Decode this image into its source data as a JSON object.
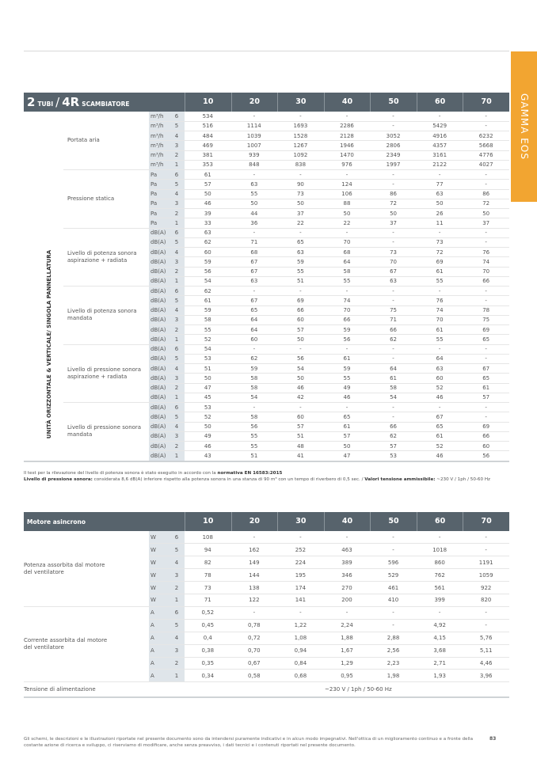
{
  "brand_tab": "GAMMA EOS",
  "columns": [
    "10",
    "20",
    "30",
    "40",
    "50",
    "60",
    "70"
  ],
  "table1": {
    "title": {
      "a": "2",
      "b": "TUBI",
      "sep": "/",
      "c": "4R",
      "d": "SCAMBIATORE"
    },
    "side_label": "UNITÀ ORIZZONTALE & VERTICALE/ SINGOLA PANNELLATURA",
    "groups": [
      {
        "label": "Portata aria",
        "unit": "m³/h",
        "rows": [
          [
            "6",
            "534",
            "-",
            "-",
            "-",
            "-",
            "-",
            "-"
          ],
          [
            "5",
            "516",
            "1114",
            "1693",
            "2286",
            "-",
            "5429",
            "-"
          ],
          [
            "4",
            "484",
            "1039",
            "1528",
            "2128",
            "3052",
            "4916",
            "6232"
          ],
          [
            "3",
            "469",
            "1007",
            "1267",
            "1946",
            "2806",
            "4357",
            "5668"
          ],
          [
            "2",
            "381",
            "939",
            "1092",
            "1470",
            "2349",
            "3161",
            "4776"
          ],
          [
            "1",
            "353",
            "848",
            "838",
            "976",
            "1997",
            "2122",
            "4027"
          ]
        ]
      },
      {
        "label": "Pressione statica",
        "unit": "Pa",
        "rows": [
          [
            "6",
            "61",
            "-",
            "-",
            "-",
            "-",
            "-",
            "-"
          ],
          [
            "5",
            "57",
            "63",
            "90",
            "124",
            "-",
            "77",
            "-"
          ],
          [
            "4",
            "50",
            "55",
            "73",
            "106",
            "86",
            "63",
            "86"
          ],
          [
            "3",
            "46",
            "50",
            "50",
            "88",
            "72",
            "50",
            "72"
          ],
          [
            "2",
            "39",
            "44",
            "37",
            "50",
            "50",
            "26",
            "50"
          ],
          [
            "1",
            "33",
            "36",
            "22",
            "22",
            "37",
            "11",
            "37"
          ]
        ]
      },
      {
        "label": "Livello di potenza sonora\naspirazione + radiata",
        "unit": "dB(A)",
        "rows": [
          [
            "6",
            "63",
            "-",
            "-",
            "-",
            "-",
            "-",
            "-"
          ],
          [
            "5",
            "62",
            "71",
            "65",
            "70",
            "-",
            "73",
            "-"
          ],
          [
            "4",
            "60",
            "68",
            "63",
            "68",
            "73",
            "72",
            "76"
          ],
          [
            "3",
            "59",
            "67",
            "59",
            "64",
            "70",
            "69",
            "74"
          ],
          [
            "2",
            "56",
            "67",
            "55",
            "58",
            "67",
            "61",
            "70"
          ],
          [
            "1",
            "54",
            "63",
            "51",
            "55",
            "63",
            "55",
            "66"
          ]
        ]
      },
      {
        "label": "Livello di potenza sonora\nmandata",
        "unit": "dB(A)",
        "rows": [
          [
            "6",
            "62",
            "-",
            "-",
            "-",
            "-",
            "-",
            "-"
          ],
          [
            "5",
            "61",
            "67",
            "69",
            "74",
            "-",
            "76",
            "-"
          ],
          [
            "4",
            "59",
            "65",
            "66",
            "70",
            "75",
            "74",
            "78"
          ],
          [
            "3",
            "58",
            "64",
            "60",
            "66",
            "71",
            "70",
            "75"
          ],
          [
            "2",
            "55",
            "64",
            "57",
            "59",
            "66",
            "61",
            "69"
          ],
          [
            "1",
            "52",
            "60",
            "50",
            "56",
            "62",
            "55",
            "65"
          ]
        ]
      },
      {
        "label": "Livello di pressione sonora\naspirazione + radiata",
        "unit": "dB(A)",
        "rows": [
          [
            "6",
            "54",
            "-",
            "-",
            "-",
            "-",
            "-",
            "-"
          ],
          [
            "5",
            "53",
            "62",
            "56",
            "61",
            "-",
            "64",
            "-"
          ],
          [
            "4",
            "51",
            "59",
            "54",
            "59",
            "64",
            "63",
            "67"
          ],
          [
            "3",
            "50",
            "58",
            "50",
            "55",
            "61",
            "60",
            "65"
          ],
          [
            "2",
            "47",
            "58",
            "46",
            "49",
            "58",
            "52",
            "61"
          ],
          [
            "1",
            "45",
            "54",
            "42",
            "46",
            "54",
            "46",
            "57"
          ]
        ]
      },
      {
        "label": "Livello di pressione sonora\nmandata",
        "unit": "dB(A)",
        "rows": [
          [
            "6",
            "53",
            "-",
            "-",
            "-",
            "-",
            "-",
            "-"
          ],
          [
            "5",
            "52",
            "58",
            "60",
            "65",
            "-",
            "67",
            "-"
          ],
          [
            "4",
            "50",
            "56",
            "57",
            "61",
            "66",
            "65",
            "69"
          ],
          [
            "3",
            "49",
            "55",
            "51",
            "57",
            "62",
            "61",
            "66"
          ],
          [
            "2",
            "46",
            "55",
            "48",
            "50",
            "57",
            "52",
            "60"
          ],
          [
            "1",
            "43",
            "51",
            "41",
            "47",
            "53",
            "46",
            "56"
          ]
        ]
      }
    ]
  },
  "notes": {
    "line1": "Il test per la rilevazione del livello di potenza sonora è stato eseguito in accordo con la ",
    "line1_bold": "normativa EN 16583:2015",
    "line2_bold": "Livello di pressione sonora:",
    "line2": " considerata 8,6 dB(A) inferiore rispetto alla potenza sonora in una stanza di 90 m³ con un tempo di riverbero di 0,5 sec. / ",
    "line2_bold2": "Valori tensione ammissibile:",
    "line2_end": " ~230 V / 1ph / 50-60 Hz"
  },
  "table2": {
    "title": "Motore asincrono",
    "groups": [
      {
        "label": "Potenza assorbita dal motore\ndel ventilatore",
        "unit": "W",
        "rows": [
          [
            "6",
            "108",
            "-",
            "-",
            "-",
            "-",
            "-",
            "-"
          ],
          [
            "5",
            "94",
            "162",
            "252",
            "463",
            "-",
            "1018",
            "-"
          ],
          [
            "4",
            "82",
            "149",
            "224",
            "389",
            "596",
            "860",
            "1191"
          ],
          [
            "3",
            "78",
            "144",
            "195",
            "346",
            "529",
            "762",
            "1059"
          ],
          [
            "2",
            "73",
            "138",
            "174",
            "270",
            "461",
            "561",
            "922"
          ],
          [
            "1",
            "71",
            "122",
            "141",
            "200",
            "410",
            "399",
            "820"
          ]
        ]
      },
      {
        "label": "Corrente assorbita dal motore\ndel ventilatore",
        "unit": "A",
        "rows": [
          [
            "6",
            "0,52",
            "-",
            "-",
            "-",
            "-",
            "-",
            "-"
          ],
          [
            "5",
            "0,45",
            "0,78",
            "1,22",
            "2,24",
            "-",
            "4,92",
            "-"
          ],
          [
            "4",
            "0,4",
            "0,72",
            "1,08",
            "1,88",
            "2,88",
            "4,15",
            "5,76"
          ],
          [
            "3",
            "0,38",
            "0,70",
            "0,94",
            "1,67",
            "2,56",
            "3,68",
            "5,11"
          ],
          [
            "2",
            "0,35",
            "0,67",
            "0,84",
            "1,29",
            "2,23",
            "2,71",
            "4,46"
          ],
          [
            "1",
            "0,34",
            "0,58",
            "0,68",
            "0,95",
            "1,98",
            "1,93",
            "3,96"
          ]
        ]
      }
    ],
    "supply_label": "Tensione di alimentazione",
    "supply_value": "~230 V / 1ph / 50-60 Hz"
  },
  "footer": {
    "text": "Gli schemi, le descrizioni e le illustrazioni riportate nel presente documento sono da intendersi puramente indicativi e in alcun modo impegnativi. Nell'ottica di un miglioramento continuo e a fronte della costante azione di ricerca e sviluppo, ci riserviamo di modificare, anche senza preavviso, i dati tecnici e i contenuti riportati nel presente documento.",
    "page": "83"
  },
  "colors": {
    "header": "#57636c",
    "accent": "#f2a531",
    "band": "#dfe5ea"
  }
}
